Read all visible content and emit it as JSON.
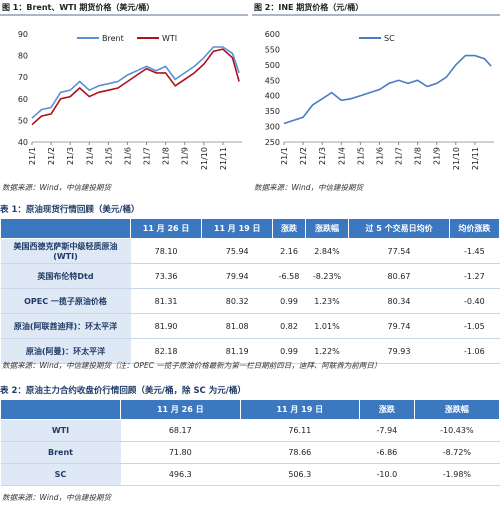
{
  "chart_data": [
    {
      "type": "line",
      "title": "图 1：Brent、WTI 期货价格（美元/桶）",
      "source": "数据来源：Wind，中信建投期货",
      "x": [
        1,
        1.5,
        2,
        2.5,
        3,
        3.5,
        4,
        4.5,
        5,
        5.5,
        6,
        6.5,
        7,
        7.5,
        8,
        8.5,
        9,
        9.5,
        10,
        10.5,
        11,
        11.5,
        11.85
      ],
      "xlim": [
        1,
        12
      ],
      "xticks": [
        {
          "value": 1,
          "label": "21/1"
        },
        {
          "value": 2,
          "label": "21/2"
        },
        {
          "value": 3,
          "label": "21/3"
        },
        {
          "value": 4,
          "label": "21/4"
        },
        {
          "value": 5,
          "label": "21/5"
        },
        {
          "value": 6,
          "label": "21/6"
        },
        {
          "value": 7,
          "label": "21/7"
        },
        {
          "value": 8,
          "label": "21/8"
        },
        {
          "value": 9,
          "label": "21/9"
        },
        {
          "value": 10,
          "label": "21/10"
        },
        {
          "value": 11,
          "label": "21/11"
        }
      ],
      "ylim": [
        40,
        90
      ],
      "yticks": [
        40,
        50,
        60,
        70,
        80,
        90
      ],
      "grid": false,
      "legend": "top",
      "series": [
        {
          "name": "Brent",
          "color": "#5b8fd6",
          "values": [
            51,
            55,
            56,
            63,
            64,
            68,
            64,
            66,
            67,
            68,
            71,
            73,
            75,
            73,
            75,
            69,
            72,
            75,
            79,
            84,
            84,
            81,
            72
          ]
        },
        {
          "name": "WTI",
          "color": "#b0101b",
          "values": [
            48,
            52,
            53,
            60,
            61,
            65,
            61,
            63,
            64,
            65,
            68,
            71,
            74,
            72,
            72,
            66,
            69,
            72,
            76,
            82,
            83,
            79,
            68
          ]
        }
      ]
    },
    {
      "type": "line",
      "title": "图 2：INE 期货价格（元/桶）",
      "source": "数据来源：Wind，中信建投期货",
      "x": [
        1,
        1.5,
        2,
        2.5,
        3,
        3.5,
        4,
        4.5,
        5,
        5.5,
        6,
        6.5,
        7,
        7.5,
        8,
        8.5,
        9,
        9.5,
        10,
        10.5,
        11,
        11.5,
        11.85
      ],
      "xlim": [
        1,
        12
      ],
      "xticks": [
        {
          "value": 1,
          "label": "21/1"
        },
        {
          "value": 2,
          "label": "21/2"
        },
        {
          "value": 3,
          "label": "21/3"
        },
        {
          "value": 4,
          "label": "21/4"
        },
        {
          "value": 5,
          "label": "21/5"
        },
        {
          "value": 6,
          "label": "21/6"
        },
        {
          "value": 7,
          "label": "21/7"
        },
        {
          "value": 8,
          "label": "21/8"
        },
        {
          "value": 9,
          "label": "21/9"
        },
        {
          "value": 10,
          "label": "21/10"
        },
        {
          "value": 11,
          "label": "21/11"
        }
      ],
      "ylim": [
        250,
        600
      ],
      "yticks": [
        250,
        300,
        350,
        400,
        450,
        500,
        550,
        600
      ],
      "grid": false,
      "legend": "top",
      "series": [
        {
          "name": "SC",
          "color": "#4a7cc4",
          "values": [
            310,
            320,
            330,
            370,
            390,
            410,
            385,
            390,
            400,
            410,
            420,
            440,
            450,
            440,
            450,
            430,
            440,
            460,
            500,
            530,
            530,
            520,
            496
          ]
        }
      ]
    }
  ],
  "tables": [
    {
      "title": "表 1：原油现货行情回顾（美元/桶）",
      "header": [
        "",
        "11 月 26 日",
        "11 月 19 日",
        "涨跌",
        "涨跌幅",
        "过 5 个交易日均价",
        "均价涨跌"
      ],
      "rows": [
        [
          "美国西德克萨斯中级轻质原油(WTI)",
          "78.10",
          "75.94",
          "2.16",
          "2.84%",
          "77.54",
          "-1.45"
        ],
        [
          "英国布伦特Dtd",
          "73.36",
          "79.94",
          "-6.58",
          "-8.23%",
          "80.67",
          "-1.27"
        ],
        [
          "OPEC 一揽子原油价格",
          "81.31",
          "80.32",
          "0.99",
          "1.23%",
          "80.34",
          "-0.40"
        ],
        [
          "原油(阿联酋迪拜)：环太平洋",
          "81.90",
          "81.08",
          "0.82",
          "1.01%",
          "79.74",
          "-1.05"
        ],
        [
          "原油(阿曼)：环太平洋",
          "82.18",
          "81.19",
          "0.99",
          "1.22%",
          "79.93",
          "-1.06"
        ]
      ],
      "note": "数据来源：Wind，中信建投期货（注：OPEC 一揽子原油价格最新为第一栏日期前四日，迪拜、阿联酋为前两日）"
    },
    {
      "title": "表 2：原油主力合约收盘价行情回顾（美元/桶，除 SC 为元/桶）",
      "header": [
        "",
        "11 月 26 日",
        "11 月 19 日",
        "涨跌",
        "涨跌幅"
      ],
      "rows": [
        [
          "WTI",
          "68.17",
          "76.11",
          "-7.94",
          "-10.43%"
        ],
        [
          "Brent",
          "71.80",
          "78.66",
          "-6.86",
          "-8.72%"
        ],
        [
          "SC",
          "496.3",
          "506.3",
          "-10.0",
          "-1.98%"
        ]
      ],
      "note": "数据来源：Wind，中信建投期货"
    }
  ]
}
